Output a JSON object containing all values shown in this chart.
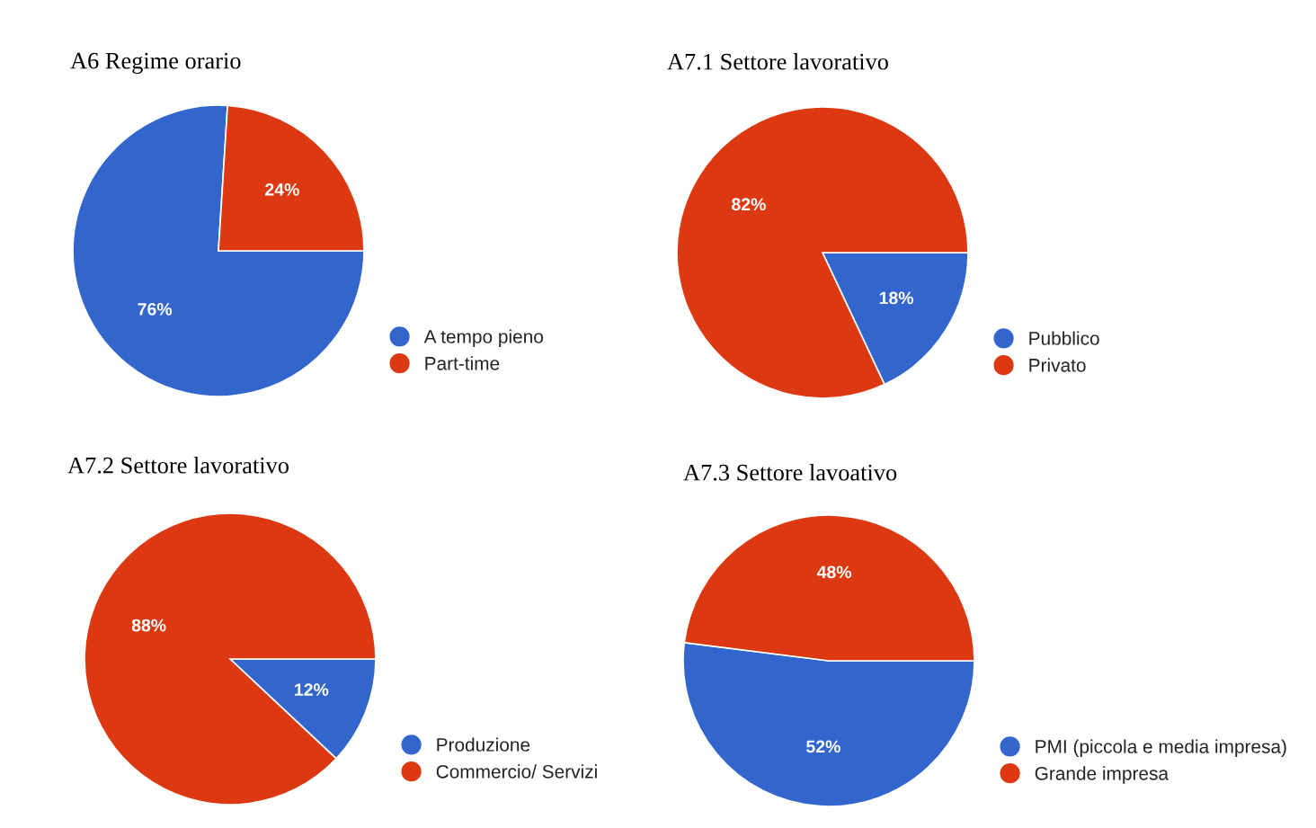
{
  "chart_data": [
    {
      "type": "pie",
      "title": "A6 Regime orario",
      "categories": [
        "A tempo pieno",
        "Part-time"
      ],
      "values": [
        76,
        24
      ],
      "colors": [
        "#3366cc",
        "#dc3912"
      ],
      "value_labels": [
        "76%",
        "24%"
      ],
      "legend": "bottom right"
    },
    {
      "type": "pie",
      "title": "A7.1 Settore lavorativo",
      "categories": [
        "Pubblico",
        "Privato"
      ],
      "values": [
        18,
        82
      ],
      "colors": [
        "#3366cc",
        "#dc3912"
      ],
      "value_labels": [
        "18%",
        "82%"
      ],
      "legend": "bottom right"
    },
    {
      "type": "pie",
      "title": "A7.2 Settore lavorativo",
      "categories": [
        "Produzione",
        "Commercio/ Servizi"
      ],
      "values": [
        12,
        88
      ],
      "colors": [
        "#3366cc",
        "#dc3912"
      ],
      "value_labels": [
        "12%",
        "88%"
      ],
      "legend": "bottom right"
    },
    {
      "type": "pie",
      "title": "A7.3 Settore lavoativo",
      "categories": [
        "PMI (piccola e media impresa)",
        "Grande impresa"
      ],
      "values": [
        52,
        48
      ],
      "colors": [
        "#3366cc",
        "#dc3912"
      ],
      "value_labels": [
        "52%",
        "48%"
      ],
      "legend": "bottom right"
    }
  ]
}
